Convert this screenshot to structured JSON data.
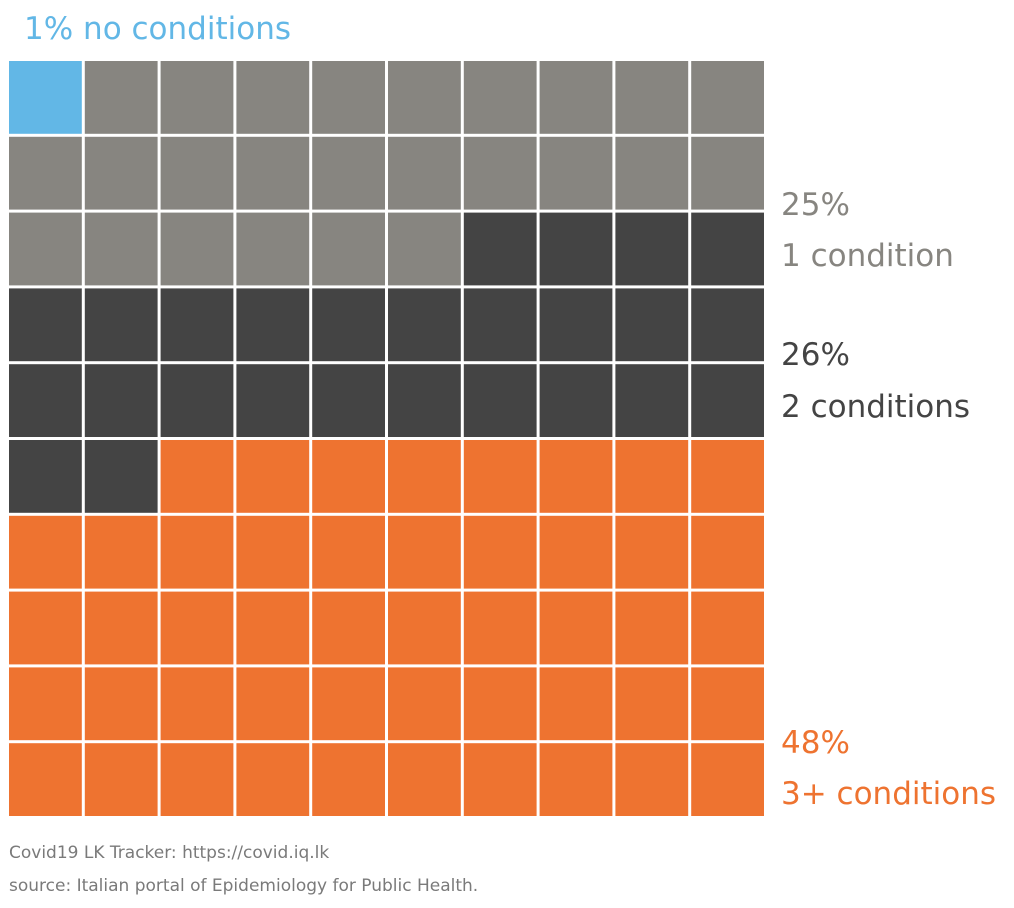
{
  "chart_data": {
    "type": "waffle",
    "total_cells": 100,
    "grid": {
      "rows": 10,
      "columns": 10
    },
    "fill_order": "row-major, from top-left",
    "series": [
      {
        "percent": "1%",
        "label": "no conditions",
        "value": 1,
        "color": "#62b7e6"
      },
      {
        "percent": "25%",
        "label": "1 condition",
        "value": 25,
        "color": "#878580"
      },
      {
        "percent": "26%",
        "label": "2 conditions",
        "value": 26,
        "color": "#444444"
      },
      {
        "percent": "48%",
        "label": "3+ conditions",
        "value": 48,
        "color": "#ee7330"
      }
    ],
    "title": "",
    "legend": "inline labels beside the grid"
  },
  "footer": {
    "credit": "Covid19 LK Tracker: https://covid.iq.lk",
    "source": "source: Italian portal of Epidemiology for Public Health."
  }
}
